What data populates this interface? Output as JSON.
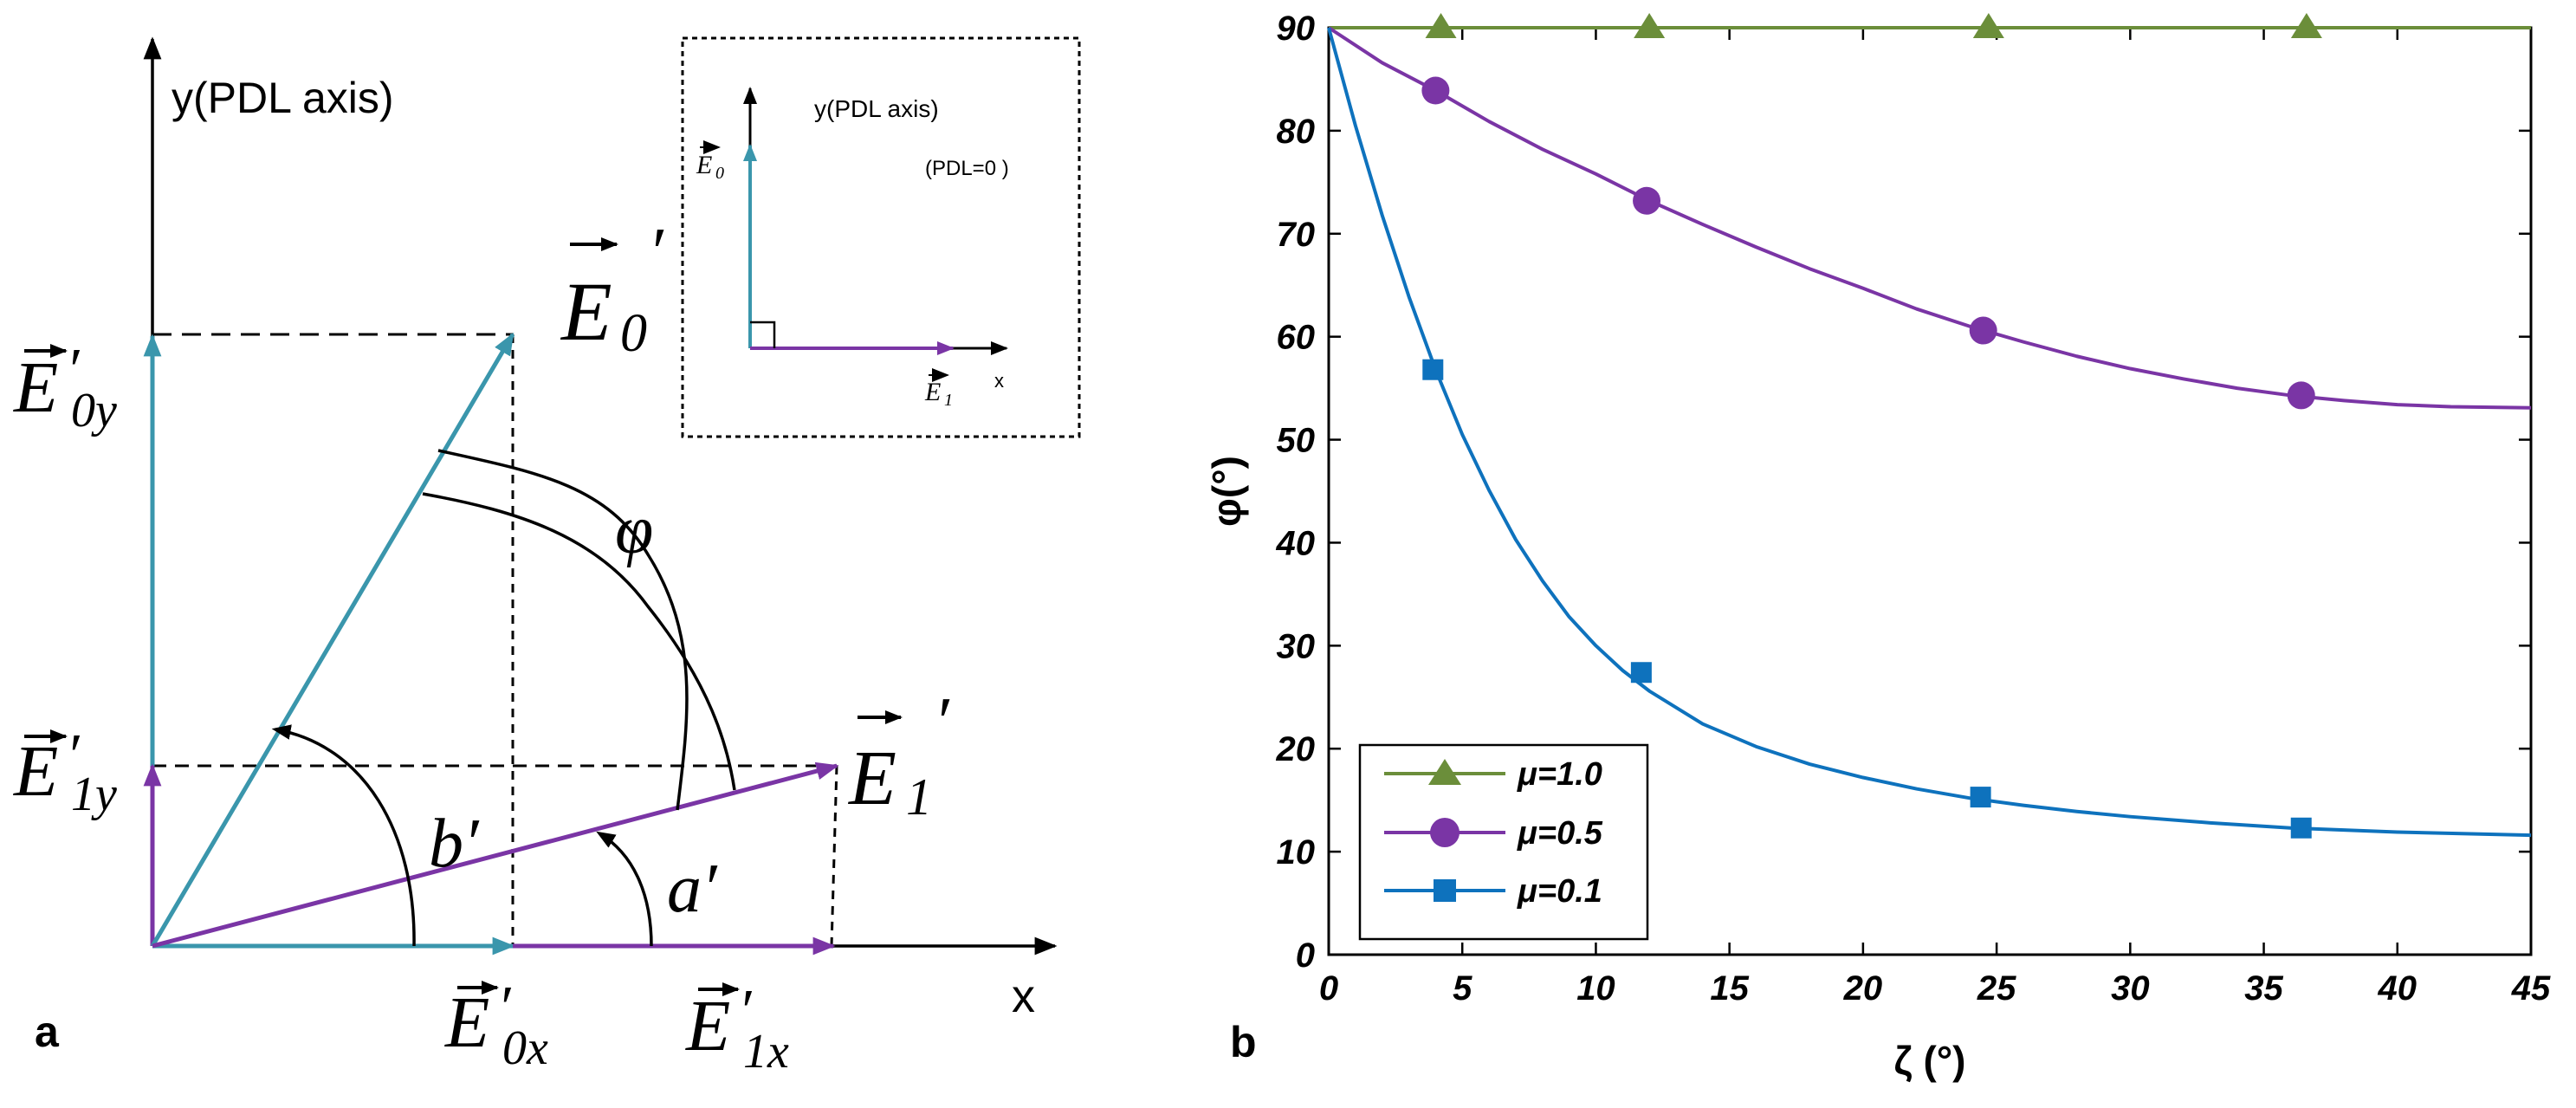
{
  "panel_a": {
    "panel_label": "a",
    "y_axis_label": "y(PDL axis)",
    "x_axis_label": "x",
    "phi_label": "φ",
    "a_angle_label": "a′",
    "b_angle_label": "b′",
    "vectors": {
      "E0_prime": {
        "base": "E",
        "sub": "0",
        "prime": "′"
      },
      "E1_prime": {
        "base": "E",
        "sub": "1",
        "prime": "′"
      },
      "E0y": {
        "base": "E",
        "sub": "0y",
        "prime": "′"
      },
      "E1y": {
        "base": "E",
        "sub": "1y",
        "prime": "′"
      },
      "E0x": {
        "base": "E",
        "sub": "0x",
        "prime": "′"
      },
      "E1x": {
        "base": "E",
        "sub": "1x",
        "prime": "′"
      }
    },
    "inset": {
      "y_axis_label": "y(PDL axis)",
      "x_axis_label": "x",
      "pdl_note": "(PDL=0 )",
      "E0": {
        "base": "E",
        "sub": "0"
      },
      "E1": {
        "base": "E",
        "sub": "1"
      }
    },
    "colors": {
      "teal": "#3a96ac",
      "purple": "#7a35a5",
      "note_red": "#c0392b"
    }
  },
  "chart_data": {
    "type": "line",
    "panel_label": "b",
    "title": "",
    "xlabel": "ζ (°)",
    "ylabel": "φ(°)",
    "xlim": [
      0,
      45
    ],
    "ylim": [
      0,
      90
    ],
    "xticks": [
      0,
      5,
      10,
      15,
      20,
      25,
      30,
      35,
      40,
      45
    ],
    "yticks": [
      0,
      10,
      20,
      30,
      40,
      50,
      60,
      70,
      80,
      90
    ],
    "legend_position": "bottom-left",
    "series": [
      {
        "name": "μ=1.0",
        "color": "#6b8e3a",
        "marker": "triangle",
        "x": [
          0,
          5,
          10,
          15,
          20,
          25,
          30,
          35,
          40,
          45
        ],
        "y": [
          90,
          90,
          90,
          90,
          90,
          90,
          90,
          90,
          90,
          90
        ],
        "marker_x": [
          4.2,
          12.0,
          24.7,
          36.6
        ],
        "marker_y": [
          90,
          90,
          90,
          90
        ]
      },
      {
        "name": "μ=0.5",
        "color": "#7a35a5",
        "marker": "circle",
        "x": [
          0,
          2,
          4,
          6,
          8,
          10,
          12,
          14,
          16,
          18,
          20,
          22,
          24,
          26,
          28,
          30,
          32,
          34,
          36,
          38,
          40,
          42,
          45
        ],
        "y": [
          90,
          86.6,
          83.9,
          80.9,
          78.2,
          75.8,
          73.2,
          70.9,
          68.7,
          66.6,
          64.7,
          62.7,
          61.0,
          59.5,
          58.1,
          56.9,
          55.9,
          55.0,
          54.3,
          53.8,
          53.4,
          53.2,
          53.1
        ],
        "marker_x": [
          4.0,
          11.9,
          24.5,
          36.4
        ],
        "marker_y": [
          83.9,
          73.2,
          60.6,
          54.3
        ]
      },
      {
        "name": "μ=0.1",
        "color": "#0e72bd",
        "marker": "square",
        "x": [
          0,
          1,
          2,
          3,
          4,
          5,
          6,
          7,
          8,
          9,
          10,
          11,
          12,
          14,
          16,
          18,
          20,
          22,
          24,
          26,
          28,
          30,
          33,
          36,
          40,
          45
        ],
        "y": [
          90,
          80.5,
          71.8,
          63.9,
          56.8,
          50.5,
          45.1,
          40.3,
          36.3,
          32.8,
          30.0,
          27.6,
          25.6,
          22.4,
          20.2,
          18.5,
          17.2,
          16.1,
          15.2,
          14.5,
          13.9,
          13.4,
          12.8,
          12.3,
          11.9,
          11.6
        ],
        "marker_x": [
          3.9,
          11.7,
          24.4,
          36.4
        ],
        "marker_y": [
          56.8,
          27.4,
          15.3,
          12.3
        ]
      }
    ]
  }
}
